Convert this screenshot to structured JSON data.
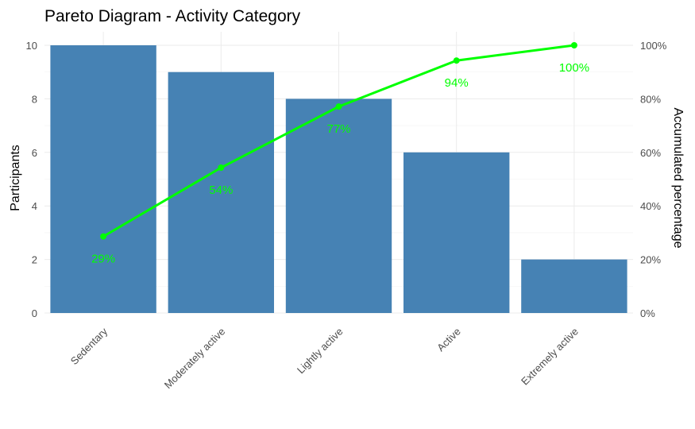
{
  "chart_data": {
    "type": "bar",
    "title": "Pareto Diagram - Activity Category",
    "ylabel": "Participants",
    "y2label": "Accumulated percentage",
    "xlabel": "",
    "categories": [
      "Sedentary",
      "Moderately active",
      "Lightly active",
      "Active",
      "Extremely active"
    ],
    "values": [
      10,
      9,
      8,
      6,
      2
    ],
    "ylim": [
      0,
      10
    ],
    "yticks": [
      "0",
      "2",
      "4",
      "6",
      "8",
      "10"
    ],
    "y2lim": [
      0,
      100
    ],
    "y2ticks": [
      "0%",
      "20%",
      "40%",
      "60%",
      "80%",
      "100%"
    ],
    "cumulative_percent": [
      28.6,
      54.3,
      77.1,
      94.3,
      100
    ],
    "cumulative_labels": [
      "29%",
      "54%",
      "77%",
      "94%",
      "100%"
    ],
    "grid": true,
    "colors": {
      "bar": "#4682b4",
      "line": "#00ff00",
      "label": "#00ff00"
    }
  }
}
